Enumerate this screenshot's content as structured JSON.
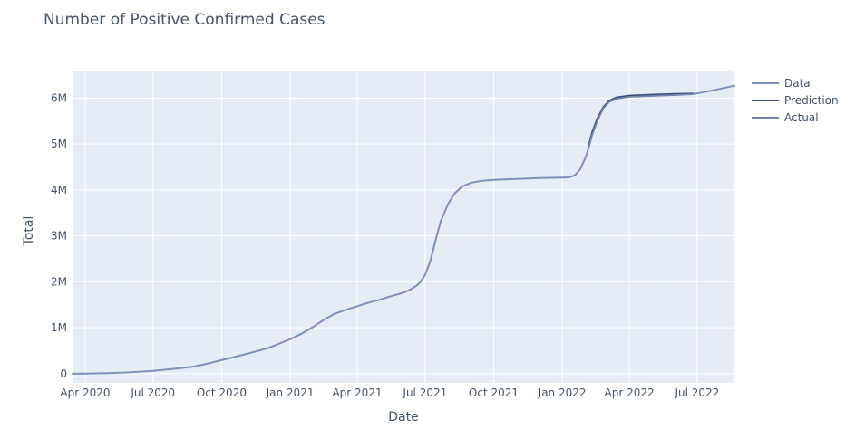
{
  "chart_data": {
    "type": "line",
    "title": "Number of Positive Confirmed Cases",
    "xlabel": "Date",
    "ylabel": "Total",
    "x_axis_type": "date",
    "xlim": [
      "2020-03-15",
      "2022-08-20"
    ],
    "ylim": [
      -200000,
      6600000
    ],
    "x_ticks": [
      {
        "date": "2020-04-01",
        "label": "Apr 2020"
      },
      {
        "date": "2020-07-01",
        "label": "Jul 2020"
      },
      {
        "date": "2020-10-01",
        "label": "Oct 2020"
      },
      {
        "date": "2021-01-01",
        "label": "Jan 2021"
      },
      {
        "date": "2021-04-01",
        "label": "Apr 2021"
      },
      {
        "date": "2021-07-01",
        "label": "Jul 2021"
      },
      {
        "date": "2021-10-01",
        "label": "Oct 2021"
      },
      {
        "date": "2022-01-01",
        "label": "Jan 2022"
      },
      {
        "date": "2022-04-01",
        "label": "Apr 2022"
      },
      {
        "date": "2022-07-01",
        "label": "Jul 2022"
      }
    ],
    "y_ticks": [
      {
        "value": 0,
        "label": "0"
      },
      {
        "value": 1000000,
        "label": "1M"
      },
      {
        "value": 2000000,
        "label": "2M"
      },
      {
        "value": 3000000,
        "label": "3M"
      },
      {
        "value": 4000000,
        "label": "4M"
      },
      {
        "value": 5000000,
        "label": "5M"
      },
      {
        "value": 6000000,
        "label": "6M"
      }
    ],
    "grid": true,
    "legend_position": "top-right",
    "background_color": "#e5ecf6",
    "series": [
      {
        "name": "Data",
        "color": "#7f90b8",
        "points": [
          [
            "2020-03-15",
            0
          ],
          [
            "2020-04-01",
            2000
          ],
          [
            "2020-05-01",
            10000
          ],
          [
            "2020-06-01",
            30000
          ],
          [
            "2020-07-01",
            60000
          ],
          [
            "2020-08-01",
            110000
          ],
          [
            "2020-08-25",
            155000
          ],
          [
            "2020-09-15",
            230000
          ],
          [
            "2020-10-01",
            295000
          ],
          [
            "2020-10-15",
            350000
          ],
          [
            "2020-11-01",
            420000
          ],
          [
            "2020-11-15",
            480000
          ],
          [
            "2020-12-01",
            550000
          ],
          [
            "2020-12-15",
            640000
          ],
          [
            "2021-01-01",
            750000
          ],
          [
            "2021-01-15",
            860000
          ],
          [
            "2021-02-01",
            1020000
          ],
          [
            "2021-02-15",
            1170000
          ],
          [
            "2021-03-01",
            1300000
          ],
          [
            "2021-03-15",
            1380000
          ],
          [
            "2021-04-01",
            1470000
          ],
          [
            "2021-04-15",
            1540000
          ],
          [
            "2021-05-01",
            1610000
          ],
          [
            "2021-05-15",
            1680000
          ],
          [
            "2021-06-01",
            1760000
          ],
          [
            "2021-06-10",
            1820000
          ],
          [
            "2021-06-20",
            1920000
          ],
          [
            "2021-06-25",
            2000000
          ],
          [
            "2021-07-01",
            2150000
          ],
          [
            "2021-07-08",
            2450000
          ],
          [
            "2021-07-15",
            2900000
          ],
          [
            "2021-07-22",
            3320000
          ],
          [
            "2021-08-01",
            3700000
          ],
          [
            "2021-08-10",
            3930000
          ],
          [
            "2021-08-20",
            4080000
          ],
          [
            "2021-09-01",
            4160000
          ],
          [
            "2021-09-15",
            4200000
          ],
          [
            "2021-10-01",
            4220000
          ],
          [
            "2021-11-01",
            4240000
          ],
          [
            "2021-12-01",
            4260000
          ],
          [
            "2022-01-01",
            4270000
          ],
          [
            "2022-01-10",
            4275000
          ],
          [
            "2022-01-18",
            4320000
          ],
          [
            "2022-01-25",
            4450000
          ],
          [
            "2022-02-01",
            4700000
          ],
          [
            "2022-02-05",
            4900000
          ],
          [
            "2022-02-10",
            5200000
          ],
          [
            "2022-02-17",
            5500000
          ],
          [
            "2022-02-25",
            5780000
          ],
          [
            "2022-03-05",
            5920000
          ],
          [
            "2022-03-15",
            5990000
          ],
          [
            "2022-04-01",
            6030000
          ],
          [
            "2022-05-01",
            6050000
          ],
          [
            "2022-06-01",
            6070000
          ],
          [
            "2022-06-25",
            6090000
          ],
          [
            "2022-07-10",
            6130000
          ],
          [
            "2022-07-25",
            6180000
          ],
          [
            "2022-08-20",
            6270000
          ]
        ]
      },
      {
        "name": "Prediction",
        "color": "#3c4a78",
        "points": [
          [
            "2022-02-05",
            4950000
          ],
          [
            "2022-02-10",
            5260000
          ],
          [
            "2022-02-17",
            5560000
          ],
          [
            "2022-02-25",
            5810000
          ],
          [
            "2022-03-05",
            5950000
          ],
          [
            "2022-03-15",
            6020000
          ],
          [
            "2022-04-01",
            6060000
          ],
          [
            "2022-05-01",
            6080000
          ],
          [
            "2022-06-01",
            6095000
          ],
          [
            "2022-06-25",
            6105000
          ]
        ]
      },
      {
        "name": "Actual",
        "color": "#7385ad",
        "points": [
          [
            "2022-02-05",
            4900000
          ],
          [
            "2022-02-10",
            5200000
          ],
          [
            "2022-02-17",
            5500000
          ],
          [
            "2022-02-25",
            5780000
          ],
          [
            "2022-03-05",
            5920000
          ],
          [
            "2022-03-15",
            5990000
          ],
          [
            "2022-04-01",
            6030000
          ],
          [
            "2022-05-01",
            6050000
          ],
          [
            "2022-06-01",
            6070000
          ],
          [
            "2022-06-25",
            6090000
          ]
        ]
      }
    ]
  }
}
